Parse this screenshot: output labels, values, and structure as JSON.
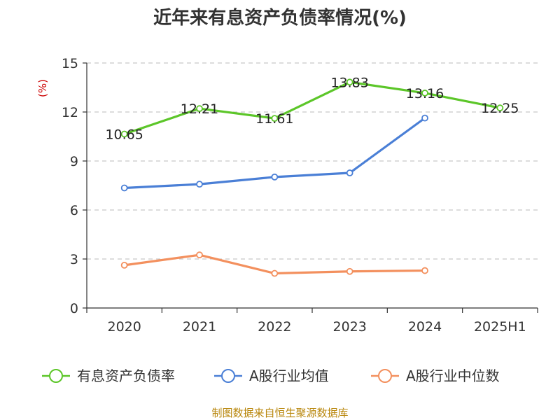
{
  "chart_data": {
    "type": "line",
    "title": "近年来有息资产负债率情况(%)",
    "ylabel": "(%)",
    "xlabel": "",
    "categories": [
      "2020",
      "2021",
      "2022",
      "2023",
      "2024",
      "2025H1"
    ],
    "ylim": [
      0,
      15
    ],
    "yticks": [
      0,
      3,
      6,
      9,
      12,
      15
    ],
    "grid": true,
    "legend_position": "bottom",
    "series": [
      {
        "name": "有息资产负债率",
        "color": "#5cc629",
        "values": [
          10.65,
          12.21,
          11.61,
          13.83,
          13.16,
          12.25
        ],
        "labels": [
          "10.65",
          "12.21",
          "11.61",
          "13.83",
          "13.16",
          "12.25"
        ]
      },
      {
        "name": "A股行业均值",
        "color": "#4a7fd6",
        "values": [
          7.35,
          7.58,
          8.02,
          8.27,
          11.63,
          null
        ]
      },
      {
        "name": "A股行业中位数",
        "color": "#f3905e",
        "values": [
          2.62,
          3.25,
          2.12,
          2.24,
          2.29,
          null
        ]
      }
    ]
  },
  "source": "制图数据来自恒生聚源数据库"
}
